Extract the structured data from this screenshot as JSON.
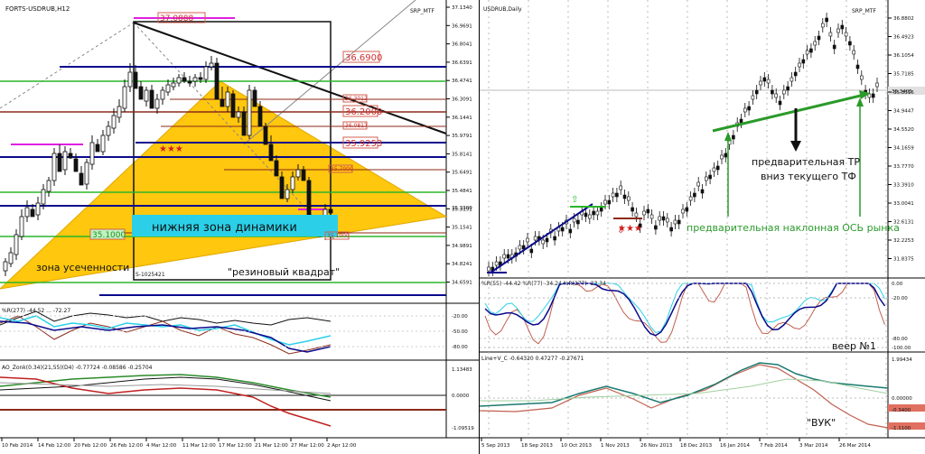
{
  "left": {
    "title": "FORTS-USDRUB,H12",
    "indicator": "SRP_MTF",
    "price_ticks": [
      "37.1340",
      "36.9691",
      "36.8041",
      "36.6391",
      "36.4741",
      "36.3091",
      "36.1441",
      "35.9791",
      "35.8141",
      "35.6491",
      "35.4841",
      "35.3191",
      "35.1541",
      "34.9891",
      "34.8241",
      "34.6591"
    ],
    "levels": [
      "37.0888",
      "36.6900",
      "36.3012",
      "36.2000",
      "36.0817",
      "35.9253",
      "35.7000",
      "35.1000",
      "35.1000"
    ],
    "current_price": "35.3300",
    "annotations": {
      "lower_zone": "нижняя зона динамики",
      "truncation_zone": "зона усеченности",
      "rubber_square": "\"резиновый квадрат\"",
      "s_label": "S-1025421",
      "stars": "★★★"
    },
    "wpr_header": "%R(277) -44.52 ... -72.27",
    "wpr_ticks": [
      "-20.00",
      "-50.00",
      "-80.00"
    ],
    "ao_header": "AO_Zonk(0.34)(21,55)(D4) -0.77724 -0.08586 -0.25704",
    "ao_ticks": [
      "1.13483",
      "0.0000",
      "-1.09519"
    ],
    "x_ticks": [
      "10 Feb 2014",
      "14 Feb 12:00",
      "20 Feb 12:00",
      "26 Feb 12:00",
      "4 Mar 12:00",
      "11 Mar 12:00",
      "17 Mar 12:00",
      "21 Mar 12:00",
      "27 Mar 12:00",
      "2 Apr 12:00"
    ]
  },
  "right": {
    "title": "USDRUB,Daily",
    "indicator": "SRP_MTF",
    "price_ticks": [
      "36.8802",
      "36.4923",
      "36.1054",
      "35.7185",
      "35.3316",
      "34.9447",
      "34.5520",
      "34.1659",
      "33.7770",
      "33.3910",
      "33.0041",
      "32.6131",
      "32.2253",
      "31.8375"
    ],
    "current_price": "35.3405",
    "annotations": {
      "preliminary_tr": "предварительная ТР",
      "down_tf": "вниз текущего ТФ",
      "axis_label": "предварительная наклонная ОСЬ рынка",
      "fan": "веер №1",
      "vuk": "\"ВУК\"",
      "stars": "★★★"
    },
    "wpr_header": "%R(55) -44.42 %R(77) -34.24 %R(277) -23.34",
    "wpr_ticks": [
      "0.00",
      "-20.00",
      "-80.00",
      "-100.00"
    ],
    "ao_header": "Line+V_C -0.64320 0.47277 -0.27671",
    "ao_ticks": [
      "1.99434",
      "0.00000",
      "-0.3400",
      "-1.1100"
    ],
    "x_ticks": [
      "5 Sep 2013",
      "18 Sep 2013",
      "10 Oct 2013",
      "1 Nov 2013",
      "26 Nov 2013",
      "18 Dec 2013",
      "16 Jan 2014",
      "7 Feb 2014",
      "3 Mar 2014",
      "26 Mar 2014"
    ]
  },
  "colors": {
    "triangle": "#ffc400",
    "cyan_zone": "#2bd0e8",
    "navy": "#0a0a8c",
    "green": "#2ab52a",
    "brown": "#8b2a1a",
    "magenta": "#e020e0",
    "salmon_label": "#e06050"
  }
}
